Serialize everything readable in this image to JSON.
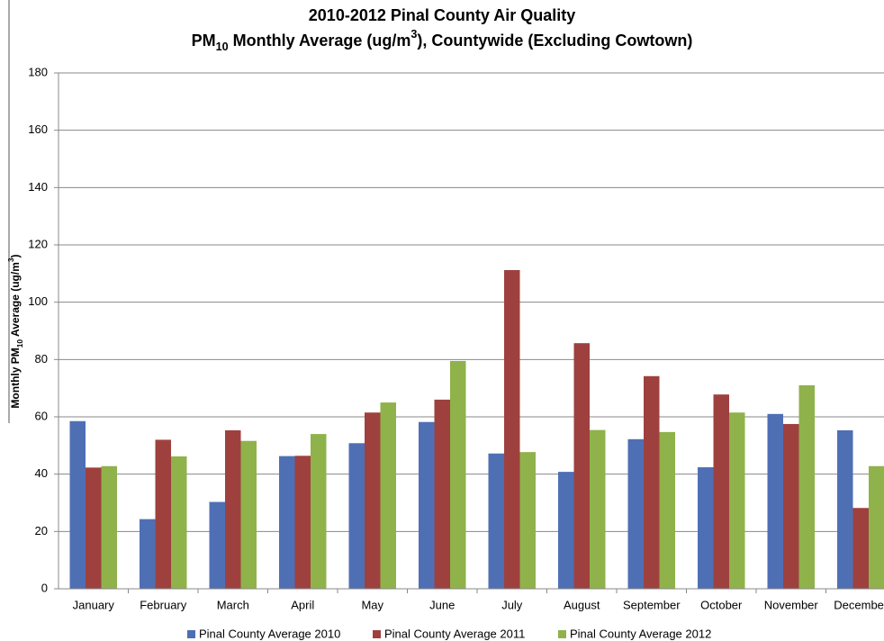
{
  "chart_data": {
    "type": "bar",
    "title": [
      [
        {
          "text": "2010-2012 Pinal County Air Quality"
        }
      ],
      [
        {
          "text": "PM"
        },
        {
          "text": "10",
          "shift": "sub"
        },
        {
          "text": " Monthly Average (ug/m"
        },
        {
          "text": "3",
          "shift": "super"
        },
        {
          "text": "), Countywide (Excluding Cowtown)"
        }
      ]
    ],
    "y_label": [
      {
        "text": "Monthly PM"
      },
      {
        "text": "10",
        "shift": "sub"
      },
      {
        "text": " Average (ug/m"
      },
      {
        "text": "3",
        "shift": "super"
      },
      {
        "text": ")"
      }
    ],
    "categories": [
      "January",
      "February",
      "March",
      "April",
      "May",
      "June",
      "July",
      "August",
      "September",
      "October",
      "November",
      "December"
    ],
    "series": [
      {
        "name": "Pinal County Average 2010",
        "color": "#4f6fb5",
        "values": [
          58.5,
          24.3,
          30.3,
          46.3,
          50.8,
          58.2,
          47.2,
          40.8,
          52.2,
          42.4,
          61,
          55.3
        ]
      },
      {
        "name": "Pinal County Average 2011",
        "color": "#9e413e",
        "values": [
          42.3,
          52,
          55.3,
          46.4,
          61.5,
          66,
          111.2,
          85.7,
          74.2,
          67.8,
          57.5,
          28.2
        ]
      },
      {
        "name": "Pinal County Average 2012",
        "color": "#8fb24b",
        "values": [
          42.8,
          46.2,
          51.6,
          54,
          65,
          79.5,
          47.7,
          55.4,
          54.7,
          61.5,
          71,
          42.8
        ]
      }
    ],
    "ylim": [
      0,
      180
    ],
    "yticks": [
      0,
      20,
      40,
      60,
      80,
      100,
      120,
      140,
      160,
      180
    ],
    "grid": true,
    "legend": "bottom"
  }
}
